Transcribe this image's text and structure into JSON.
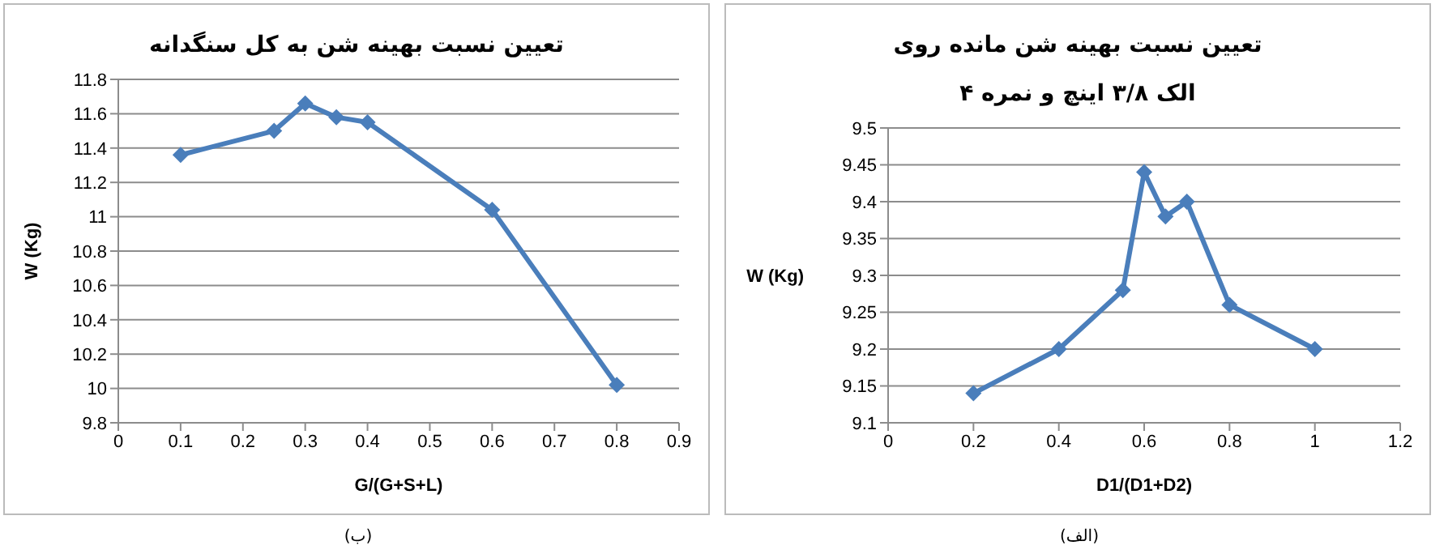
{
  "chart_data": [
    {
      "type": "line",
      "title": "تعیین نسبت بهینه شن به کل سنگدانه",
      "xlabel": "G/(G+S+L)",
      "ylabel": "W (Kg)",
      "x": [
        0.1,
        0.25,
        0.3,
        0.35,
        0.4,
        0.6,
        0.8
      ],
      "series": [
        {
          "color": "#4a7ebb",
          "values": [
            11.36,
            11.5,
            11.66,
            11.58,
            11.55,
            11.04,
            10.02
          ]
        }
      ],
      "xlim": [
        0,
        0.9
      ],
      "xticks": [
        0,
        0.1,
        0.2,
        0.3,
        0.4,
        0.5,
        0.6,
        0.7,
        0.8,
        0.9
      ],
      "ylim": [
        9.8,
        11.8
      ],
      "yticks": [
        9.8,
        10,
        10.2,
        10.4,
        10.6,
        10.8,
        11,
        11.2,
        11.4,
        11.6,
        11.8
      ],
      "grid": "y",
      "legend": false,
      "marker": "diamond",
      "line_style": "solid",
      "annotations": [
        "(ب)"
      ]
    },
    {
      "type": "line",
      "title": "تعیین نسبت بهینه شن مانده روی\nالک ۳/۸ اینچ و نمره ۴",
      "xlabel": "D1/(D1+D2)",
      "ylabel": "W (Kg)",
      "x": [
        0.2,
        0.4,
        0.55,
        0.6,
        0.65,
        0.7,
        0.8,
        1
      ],
      "series": [
        {
          "color": "#4a7ebb",
          "values": [
            9.14,
            9.2,
            9.28,
            9.44,
            9.38,
            9.4,
            9.26,
            9.2
          ]
        }
      ],
      "xlim": [
        0,
        1.2
      ],
      "xticks": [
        0,
        0.2,
        0.4,
        0.6,
        0.8,
        1,
        1.2
      ],
      "ylim": [
        9.1,
        9.5
      ],
      "yticks": [
        9.1,
        9.15,
        9.2,
        9.25,
        9.3,
        9.35,
        9.4,
        9.45,
        9.5
      ],
      "grid": "y",
      "legend": false,
      "marker": "diamond",
      "line_style": "solid",
      "annotations": [
        "(الف)"
      ]
    }
  ]
}
